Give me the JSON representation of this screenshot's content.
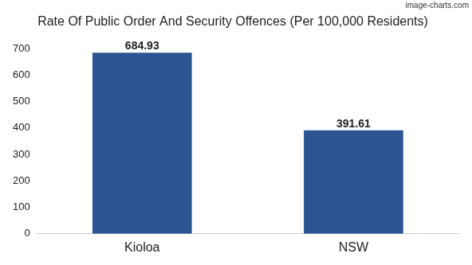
{
  "chart_data": {
    "type": "bar",
    "title": "Rate Of Public Order And Security Offences (Per 100,000 Residents)",
    "annotations": [
      "image-charts.com"
    ],
    "categories": [
      "Kioloa",
      "NSW"
    ],
    "values": [
      684.93,
      391.61
    ],
    "color": "#2c5392",
    "ylim": [
      0,
      700
    ],
    "yticks": [
      0,
      100,
      200,
      300,
      400,
      500,
      600,
      700
    ],
    "grid": false,
    "data_labels": true
  }
}
